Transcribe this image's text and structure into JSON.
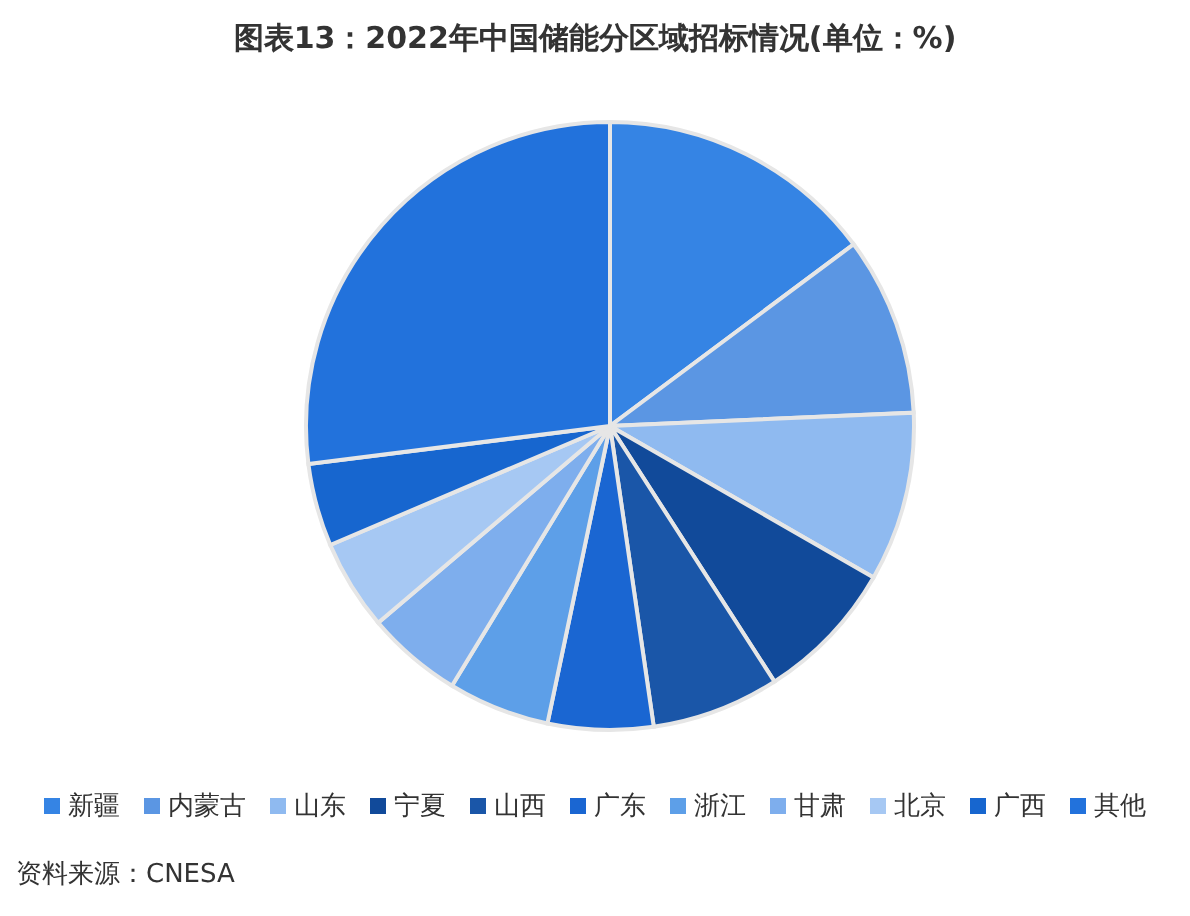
{
  "chart_data": {
    "type": "pie",
    "title": "图表13：2022年中国储能分区域招标情况(单位：%)",
    "categories": [
      "新疆",
      "内蒙古",
      "山东",
      "宁夏",
      "山西",
      "广东",
      "浙江",
      "甘肃",
      "北京",
      "广西",
      "其他"
    ],
    "values": [
      14.8,
      9.5,
      9.0,
      7.6,
      6.8,
      5.6,
      5.4,
      5.1,
      4.8,
      4.4,
      27.0
    ],
    "colors": [
      "#3584e4",
      "#5b96e3",
      "#8fbaf0",
      "#114a9a",
      "#1a56a8",
      "#1a66d2",
      "#5d9fe8",
      "#7eaeed",
      "#a6c8f3",
      "#1766cf",
      "#2272dc"
    ],
    "legend": "bottom",
    "annotations": [
      "资料来源：CNESA"
    ]
  }
}
